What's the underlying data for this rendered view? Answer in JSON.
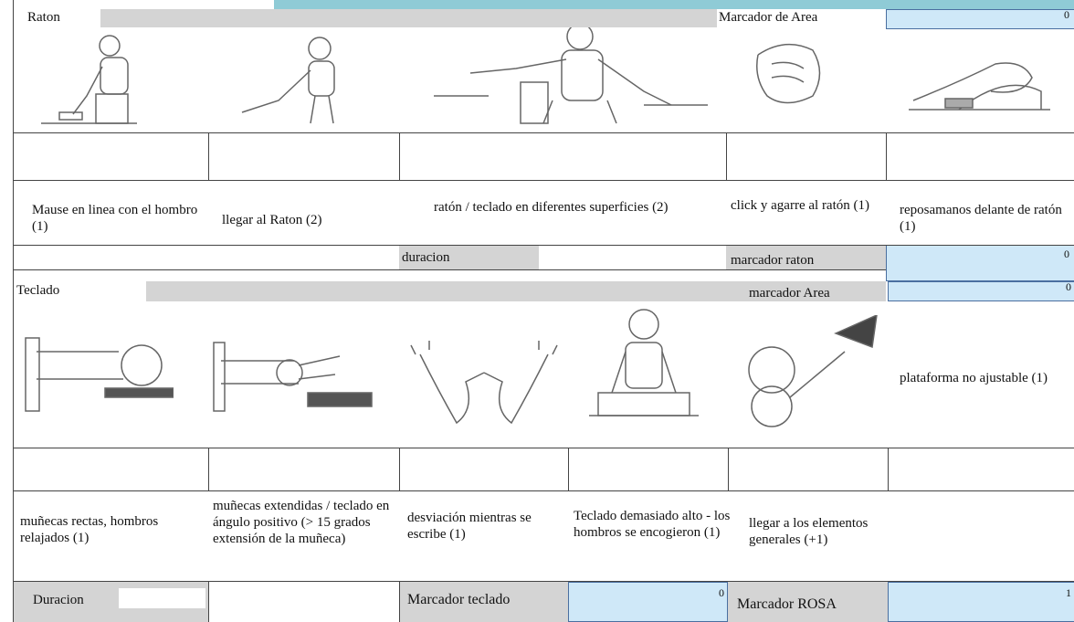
{
  "mouse": {
    "title": "Raton",
    "area_label": "Marcador de Area",
    "area_value": 0,
    "items": [
      "Mause en linea con el hombro (1)",
      "llegar al Raton (2)",
      "ratón / teclado en diferentes superficies (2)",
      "click y agarre al ratón (1)",
      "reposamanos delante de ratón (1)"
    ],
    "duration_label": "duracion",
    "score_label": "marcador raton",
    "score_value": 0
  },
  "keyboard": {
    "title": "Teclado",
    "area_label": "marcador Area",
    "area_value": 0,
    "items": [
      "muñecas rectas, hombros relajados (1)",
      "muñecas extendidas / teclado en ángulo positivo (> 15 grados extensión de la muñeca)",
      "desviación mientras se escribe (1)",
      "Teclado demasiado alto - los hombros se encogieron (1)",
      "llegar a los elementos generales (+1)",
      "plataforma no ajustable (1)"
    ],
    "duration_label": "Duracion",
    "score_label": "Marcador teclado",
    "score_value": 0
  },
  "rosa": {
    "label": "Marcador ROSA",
    "value": 1
  }
}
